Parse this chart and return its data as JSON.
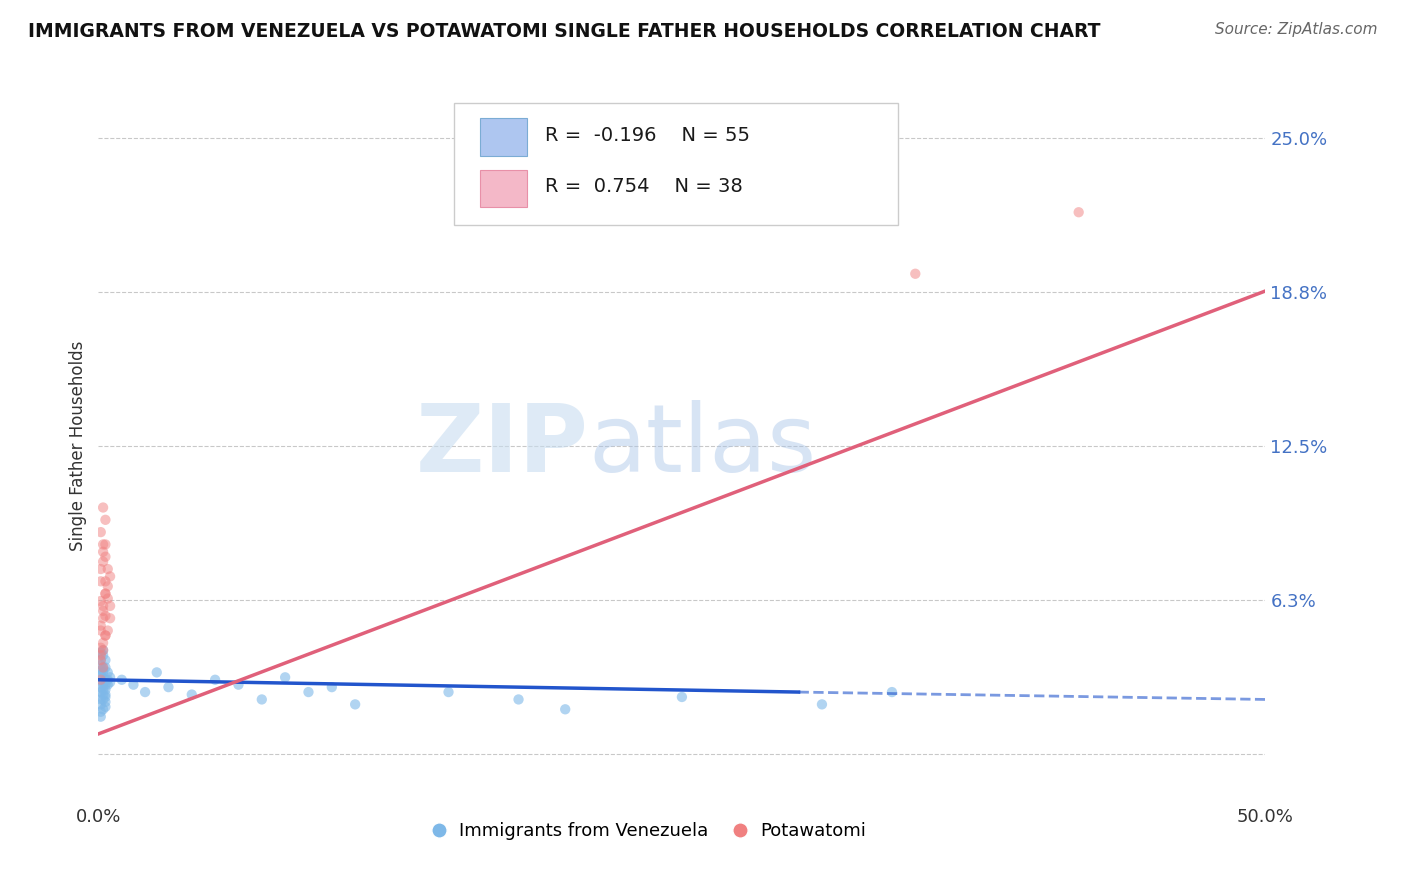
{
  "title": "IMMIGRANTS FROM VENEZUELA VS POTAWATOMI SINGLE FATHER HOUSEHOLDS CORRELATION CHART",
  "source": "Source: ZipAtlas.com",
  "ylabel": "Single Father Households",
  "yticks": [
    0.0,
    0.0625,
    0.125,
    0.1875,
    0.25
  ],
  "ytick_labels": [
    "",
    "6.3%",
    "12.5%",
    "18.8%",
    "25.0%"
  ],
  "xlim": [
    0.0,
    0.5
  ],
  "ylim": [
    -0.02,
    0.27
  ],
  "legend_entries": [
    {
      "color": "#aec6f0",
      "border": "#7bacd4",
      "R": "-0.196",
      "N": "55",
      "label": "Immigrants from Venezuela"
    },
    {
      "color": "#f4b8c8",
      "border": "#e890a8",
      "R": "0.754",
      "N": "38",
      "label": "Potawatomi"
    }
  ],
  "blue_scatter": [
    [
      0.001,
      0.032
    ],
    [
      0.002,
      0.035
    ],
    [
      0.003,
      0.028
    ],
    [
      0.001,
      0.025
    ],
    [
      0.002,
      0.04
    ],
    [
      0.001,
      0.022
    ],
    [
      0.003,
      0.03
    ],
    [
      0.002,
      0.018
    ],
    [
      0.001,
      0.038
    ],
    [
      0.003,
      0.024
    ],
    [
      0.002,
      0.033
    ],
    [
      0.001,
      0.02
    ],
    [
      0.004,
      0.03
    ],
    [
      0.002,
      0.028
    ],
    [
      0.001,
      0.015
    ],
    [
      0.003,
      0.035
    ],
    [
      0.002,
      0.026
    ],
    [
      0.001,
      0.032
    ],
    [
      0.003,
      0.019
    ],
    [
      0.002,
      0.042
    ],
    [
      0.004,
      0.028
    ],
    [
      0.001,
      0.036
    ],
    [
      0.003,
      0.023
    ],
    [
      0.002,
      0.029
    ],
    [
      0.005,
      0.031
    ],
    [
      0.001,
      0.017
    ],
    [
      0.003,
      0.038
    ],
    [
      0.002,
      0.024
    ],
    [
      0.004,
      0.033
    ],
    [
      0.001,
      0.027
    ],
    [
      0.003,
      0.021
    ],
    [
      0.002,
      0.034
    ],
    [
      0.005,
      0.029
    ],
    [
      0.001,
      0.041
    ],
    [
      0.003,
      0.026
    ],
    [
      0.002,
      0.022
    ],
    [
      0.01,
      0.03
    ],
    [
      0.015,
      0.028
    ],
    [
      0.02,
      0.025
    ],
    [
      0.025,
      0.033
    ],
    [
      0.03,
      0.027
    ],
    [
      0.04,
      0.024
    ],
    [
      0.05,
      0.03
    ],
    [
      0.06,
      0.028
    ],
    [
      0.07,
      0.022
    ],
    [
      0.08,
      0.031
    ],
    [
      0.09,
      0.025
    ],
    [
      0.1,
      0.027
    ],
    [
      0.11,
      0.02
    ],
    [
      0.15,
      0.025
    ],
    [
      0.18,
      0.022
    ],
    [
      0.2,
      0.018
    ],
    [
      0.25,
      0.023
    ],
    [
      0.31,
      0.02
    ],
    [
      0.34,
      0.025
    ]
  ],
  "pink_scatter": [
    [
      0.001,
      0.04
    ],
    [
      0.002,
      0.055
    ],
    [
      0.003,
      0.048
    ],
    [
      0.001,
      0.062
    ],
    [
      0.002,
      0.035
    ],
    [
      0.003,
      0.07
    ],
    [
      0.001,
      0.043
    ],
    [
      0.002,
      0.058
    ],
    [
      0.004,
      0.05
    ],
    [
      0.003,
      0.065
    ],
    [
      0.001,
      0.075
    ],
    [
      0.002,
      0.045
    ],
    [
      0.004,
      0.068
    ],
    [
      0.001,
      0.052
    ],
    [
      0.003,
      0.08
    ],
    [
      0.002,
      0.06
    ],
    [
      0.005,
      0.072
    ],
    [
      0.001,
      0.038
    ],
    [
      0.003,
      0.056
    ],
    [
      0.002,
      0.085
    ],
    [
      0.004,
      0.063
    ],
    [
      0.001,
      0.07
    ],
    [
      0.003,
      0.048
    ],
    [
      0.002,
      0.078
    ],
    [
      0.005,
      0.055
    ],
    [
      0.001,
      0.09
    ],
    [
      0.003,
      0.065
    ],
    [
      0.002,
      0.082
    ],
    [
      0.001,
      0.03
    ],
    [
      0.004,
      0.075
    ],
    [
      0.002,
      0.042
    ],
    [
      0.003,
      0.095
    ],
    [
      0.005,
      0.06
    ],
    [
      0.001,
      0.05
    ],
    [
      0.003,
      0.085
    ],
    [
      0.002,
      0.1
    ],
    [
      0.35,
      0.195
    ],
    [
      0.42,
      0.22
    ]
  ],
  "blue_line_x": [
    0.0,
    0.3,
    0.5
  ],
  "blue_line_y": [
    0.03,
    0.025,
    0.022
  ],
  "blue_line_solid_end": 0.3,
  "pink_line_x": [
    0.0,
    0.5
  ],
  "pink_line_y": [
    0.008,
    0.188
  ],
  "scatter_dot_size": 55,
  "blue_color": "#7eb8e8",
  "pink_color": "#f08080",
  "blue_line_color": "#2255cc",
  "pink_line_color": "#e0607a",
  "watermark_zip": "ZIP",
  "watermark_atlas": "atlas",
  "background_color": "#ffffff",
  "grid_color": "#bbbbbb"
}
